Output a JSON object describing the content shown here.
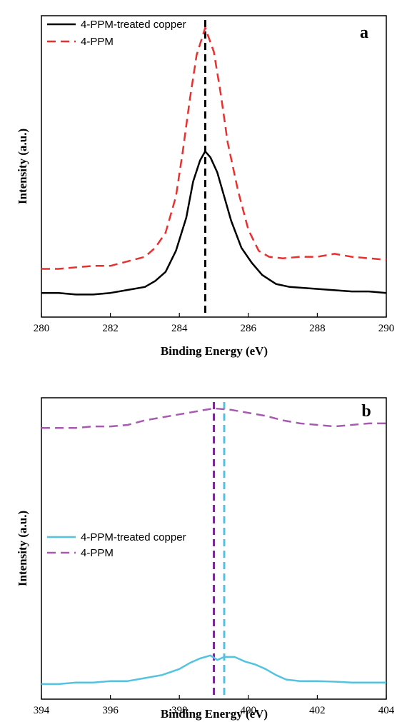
{
  "chart_data": [
    {
      "type": "line",
      "panel_label": "a",
      "xlabel": "Binding Energy (eV)",
      "ylabel": "Intensity (a.u.)",
      "xlim": [
        280,
        290
      ],
      "ylim": [
        0,
        1
      ],
      "x_ticks": [
        280,
        282,
        284,
        286,
        288,
        290
      ],
      "y_ticks": false,
      "grid": false,
      "legend_position": "top-left",
      "reference_line": {
        "x": 284.75,
        "style": "dashed",
        "color": "#000000"
      },
      "series": [
        {
          "name": "4-PPM-treated copper",
          "color": "#000000",
          "dash": "solid",
          "x": [
            280,
            280.5,
            281,
            281.5,
            282,
            282.5,
            283,
            283.3,
            283.6,
            283.9,
            284.2,
            284.4,
            284.6,
            284.75,
            284.9,
            285.1,
            285.3,
            285.5,
            285.8,
            286.1,
            286.4,
            286.8,
            287.2,
            287.8,
            288.4,
            289,
            289.5,
            290
          ],
          "y": [
            0.08,
            0.08,
            0.075,
            0.075,
            0.08,
            0.09,
            0.1,
            0.12,
            0.15,
            0.22,
            0.33,
            0.45,
            0.52,
            0.55,
            0.53,
            0.48,
            0.4,
            0.32,
            0.23,
            0.18,
            0.14,
            0.11,
            0.1,
            0.095,
            0.09,
            0.085,
            0.085,
            0.08
          ]
        },
        {
          "name": "4-PPM",
          "color": "#e8312f",
          "dash": "dashed",
          "x": [
            280,
            280.5,
            281,
            281.5,
            282,
            282.5,
            283,
            283.3,
            283.6,
            283.9,
            284.1,
            284.3,
            284.5,
            284.75,
            285,
            285.2,
            285.4,
            285.7,
            286,
            286.3,
            286.6,
            287,
            287.5,
            288,
            288.5,
            289,
            289.5,
            290
          ],
          "y": [
            0.16,
            0.16,
            0.165,
            0.17,
            0.17,
            0.185,
            0.2,
            0.23,
            0.28,
            0.4,
            0.55,
            0.72,
            0.87,
            0.96,
            0.88,
            0.74,
            0.58,
            0.42,
            0.29,
            0.22,
            0.2,
            0.195,
            0.2,
            0.2,
            0.21,
            0.2,
            0.195,
            0.19
          ]
        }
      ]
    },
    {
      "type": "line",
      "panel_label": "b",
      "xlabel": "Binding Energy (eV)",
      "ylabel": "Intensity (a.u.)",
      "xlim": [
        394,
        404
      ],
      "ylim": [
        0,
        1
      ],
      "x_ticks": [
        394,
        396,
        398,
        400,
        402,
        404
      ],
      "y_ticks": false,
      "grid": false,
      "legend_position": "center-left",
      "reference_lines": [
        {
          "x": 399.0,
          "style": "dashed",
          "color": "#7b2c8e"
        },
        {
          "x": 399.3,
          "style": "dashed",
          "color": "#54c3e0"
        }
      ],
      "series": [
        {
          "name": "4-PPM-treated copper",
          "color": "#54c3e0",
          "dash": "solid",
          "x": [
            394,
            394.5,
            395,
            395.5,
            396,
            396.5,
            397,
            397.5,
            398,
            398.3,
            398.6,
            398.9,
            399.1,
            399.3,
            399.6,
            399.9,
            400.2,
            400.5,
            400.8,
            401.1,
            401.5,
            402,
            402.5,
            403,
            403.5,
            404
          ],
          "y": [
            0.05,
            0.05,
            0.055,
            0.055,
            0.06,
            0.06,
            0.07,
            0.08,
            0.1,
            0.12,
            0.135,
            0.145,
            0.13,
            0.14,
            0.14,
            0.125,
            0.115,
            0.1,
            0.08,
            0.065,
            0.06,
            0.06,
            0.058,
            0.055,
            0.055,
            0.055
          ]
        },
        {
          "name": "4-PPM",
          "color": "#a75bb0",
          "dash": "dashed",
          "x": [
            394,
            394.5,
            395,
            395.5,
            396,
            396.5,
            397,
            397.5,
            398,
            398.5,
            399,
            399.5,
            400,
            400.5,
            401,
            401.5,
            402,
            402.5,
            403,
            403.5,
            404
          ],
          "y": [
            0.9,
            0.9,
            0.9,
            0.905,
            0.905,
            0.91,
            0.925,
            0.935,
            0.945,
            0.955,
            0.965,
            0.96,
            0.95,
            0.94,
            0.925,
            0.915,
            0.91,
            0.905,
            0.91,
            0.915,
            0.915
          ]
        }
      ]
    }
  ]
}
